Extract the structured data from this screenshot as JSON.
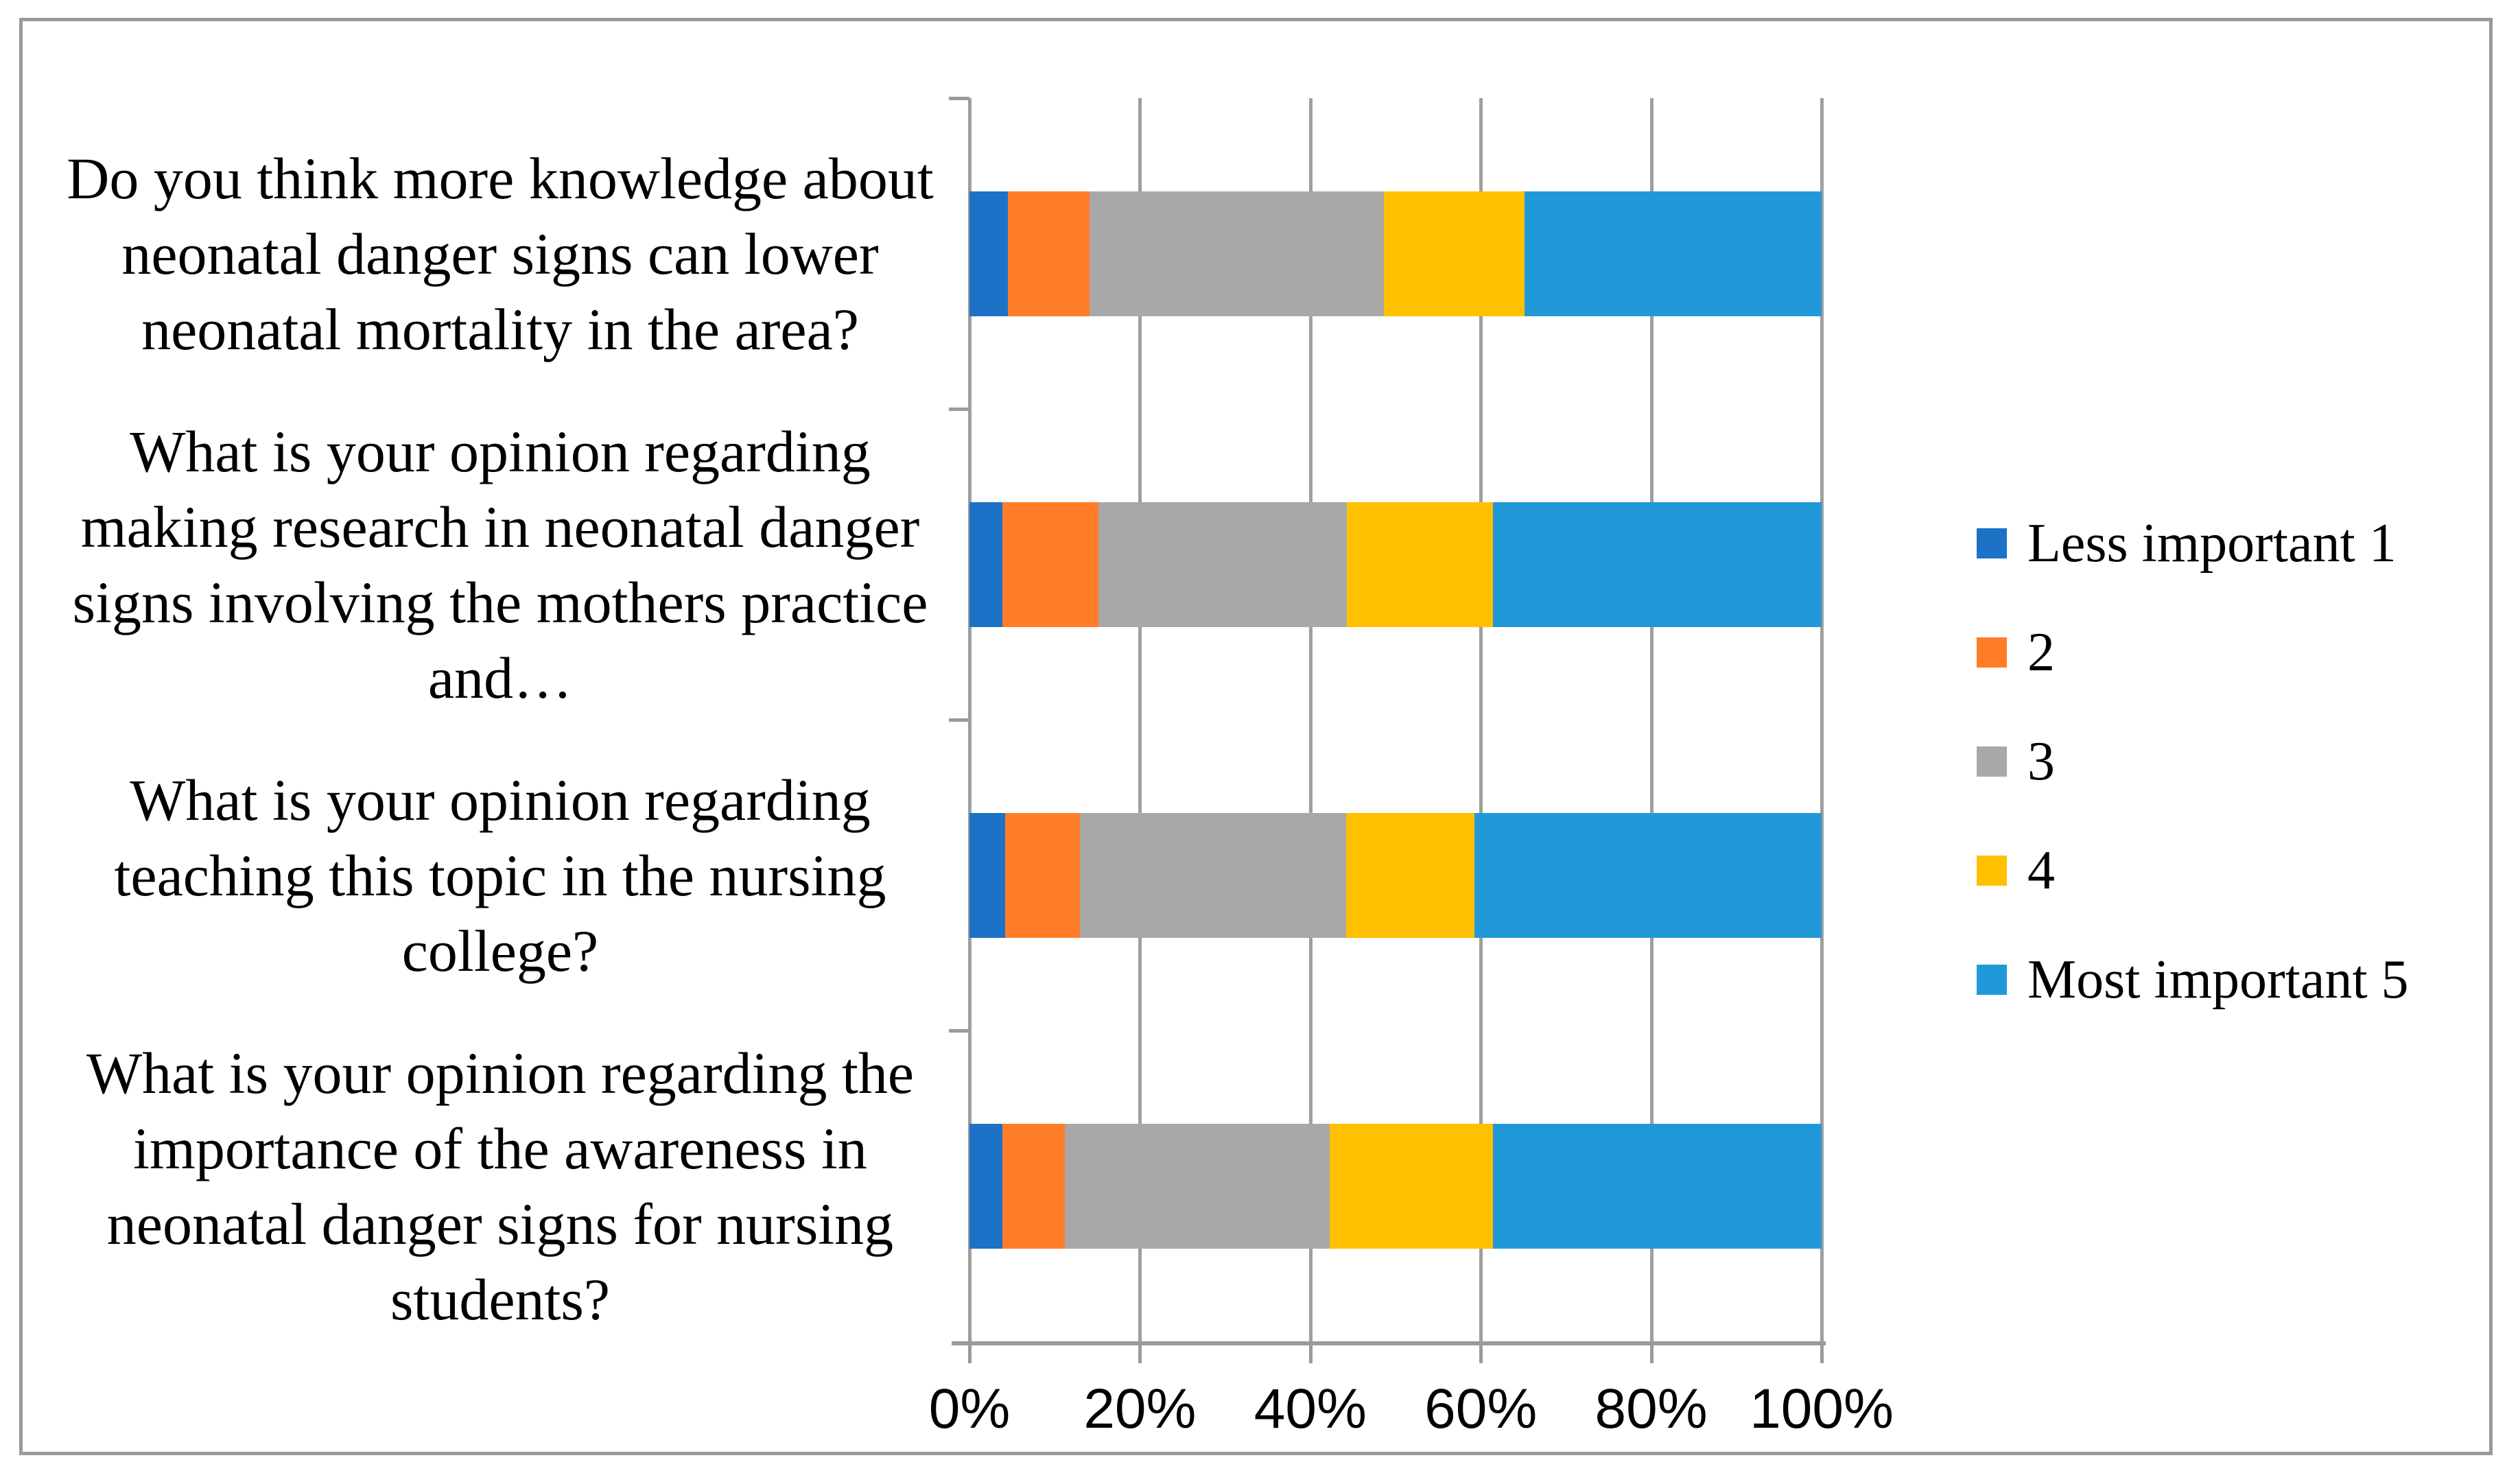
{
  "figure": {
    "background": "#ffffff",
    "border_color": "#9a9a9a",
    "gridline_color": "#9f9f9f",
    "text_color": "#000000"
  },
  "chart_data": {
    "type": "bar",
    "orientation": "horizontal",
    "stacked": true,
    "unit": "percent",
    "title": "",
    "xlabel": "",
    "ylabel": "",
    "grid": true,
    "legend_position": "right",
    "categories": [
      "Do you think more knowledge about neonatal danger signs can lower neonatal mortality in the area?",
      "What is your opinion regarding making research in neonatal danger signs involving the mothers practice and…",
      "What is your opinion regarding teaching this topic in the nursing college?",
      "What is your opinion regarding the importance of the awareness in neonatal danger signs for nursing students?"
    ],
    "series": [
      {
        "name": "Less important 1",
        "color": "#1b72c6",
        "values": [
          4.5,
          3.9,
          4.2,
          3.9
        ]
      },
      {
        "name": "2",
        "color": "#ff7d28",
        "values": [
          9.6,
          11.2,
          8.8,
          7.3
        ]
      },
      {
        "name": "3",
        "color": "#a8a8a8",
        "values": [
          34.5,
          29.2,
          31.2,
          31.1
        ]
      },
      {
        "name": "4",
        "color": "#ffc000",
        "values": [
          16.5,
          17.1,
          15.1,
          19.1
        ]
      },
      {
        "name": "Most important 5",
        "color": "#2199d8",
        "values": [
          34.9,
          38.6,
          40.7,
          38.6
        ]
      }
    ],
    "x_axis": {
      "min": 0,
      "max": 100,
      "tick_step": 20,
      "tick_labels": [
        "0%",
        "20%",
        "40%",
        "60%",
        "80%",
        "100%"
      ]
    }
  }
}
